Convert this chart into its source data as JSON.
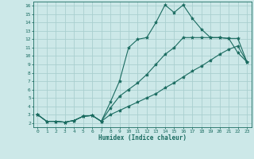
{
  "xlabel": "Humidex (Indice chaleur)",
  "bg_color": "#cce8e8",
  "line_color": "#1a6b60",
  "grid_color": "#aacfcf",
  "xlim": [
    -0.5,
    23.5
  ],
  "ylim": [
    1.5,
    16.5
  ],
  "xticks": [
    0,
    1,
    2,
    3,
    4,
    5,
    6,
    7,
    8,
    9,
    10,
    11,
    12,
    13,
    14,
    15,
    16,
    17,
    18,
    19,
    20,
    21,
    22,
    23
  ],
  "yticks": [
    2,
    3,
    4,
    5,
    6,
    7,
    8,
    9,
    10,
    11,
    12,
    13,
    14,
    15,
    16
  ],
  "line1": {
    "x": [
      0,
      1,
      2,
      3,
      4,
      5,
      6,
      7,
      8,
      9,
      10,
      11,
      12,
      13,
      14,
      15,
      16,
      17,
      18,
      19,
      20,
      21,
      22,
      23
    ],
    "y": [
      3.0,
      2.2,
      2.2,
      2.1,
      2.3,
      2.8,
      2.9,
      2.2,
      4.5,
      7.0,
      11.0,
      12.0,
      12.2,
      14.0,
      16.1,
      15.2,
      16.1,
      14.5,
      13.2,
      12.2,
      12.2,
      12.1,
      10.4,
      9.3
    ]
  },
  "line2": {
    "x": [
      0,
      1,
      2,
      3,
      4,
      5,
      6,
      7,
      8,
      9,
      10,
      11,
      12,
      13,
      14,
      15,
      16,
      17,
      18,
      19,
      20,
      21,
      22,
      23
    ],
    "y": [
      3.0,
      2.2,
      2.2,
      2.1,
      2.3,
      2.8,
      2.9,
      2.2,
      3.8,
      5.2,
      6.0,
      6.8,
      7.8,
      9.0,
      10.2,
      11.0,
      12.2,
      12.2,
      12.2,
      12.2,
      12.2,
      12.1,
      12.1,
      9.3
    ]
  },
  "line3": {
    "x": [
      0,
      1,
      2,
      3,
      4,
      5,
      6,
      7,
      8,
      9,
      10,
      11,
      12,
      13,
      14,
      15,
      16,
      17,
      18,
      19,
      20,
      21,
      22,
      23
    ],
    "y": [
      3.0,
      2.2,
      2.2,
      2.1,
      2.3,
      2.8,
      2.9,
      2.2,
      3.0,
      3.5,
      4.0,
      4.5,
      5.0,
      5.5,
      6.2,
      6.8,
      7.5,
      8.2,
      8.8,
      9.5,
      10.2,
      10.8,
      11.2,
      9.3
    ]
  }
}
